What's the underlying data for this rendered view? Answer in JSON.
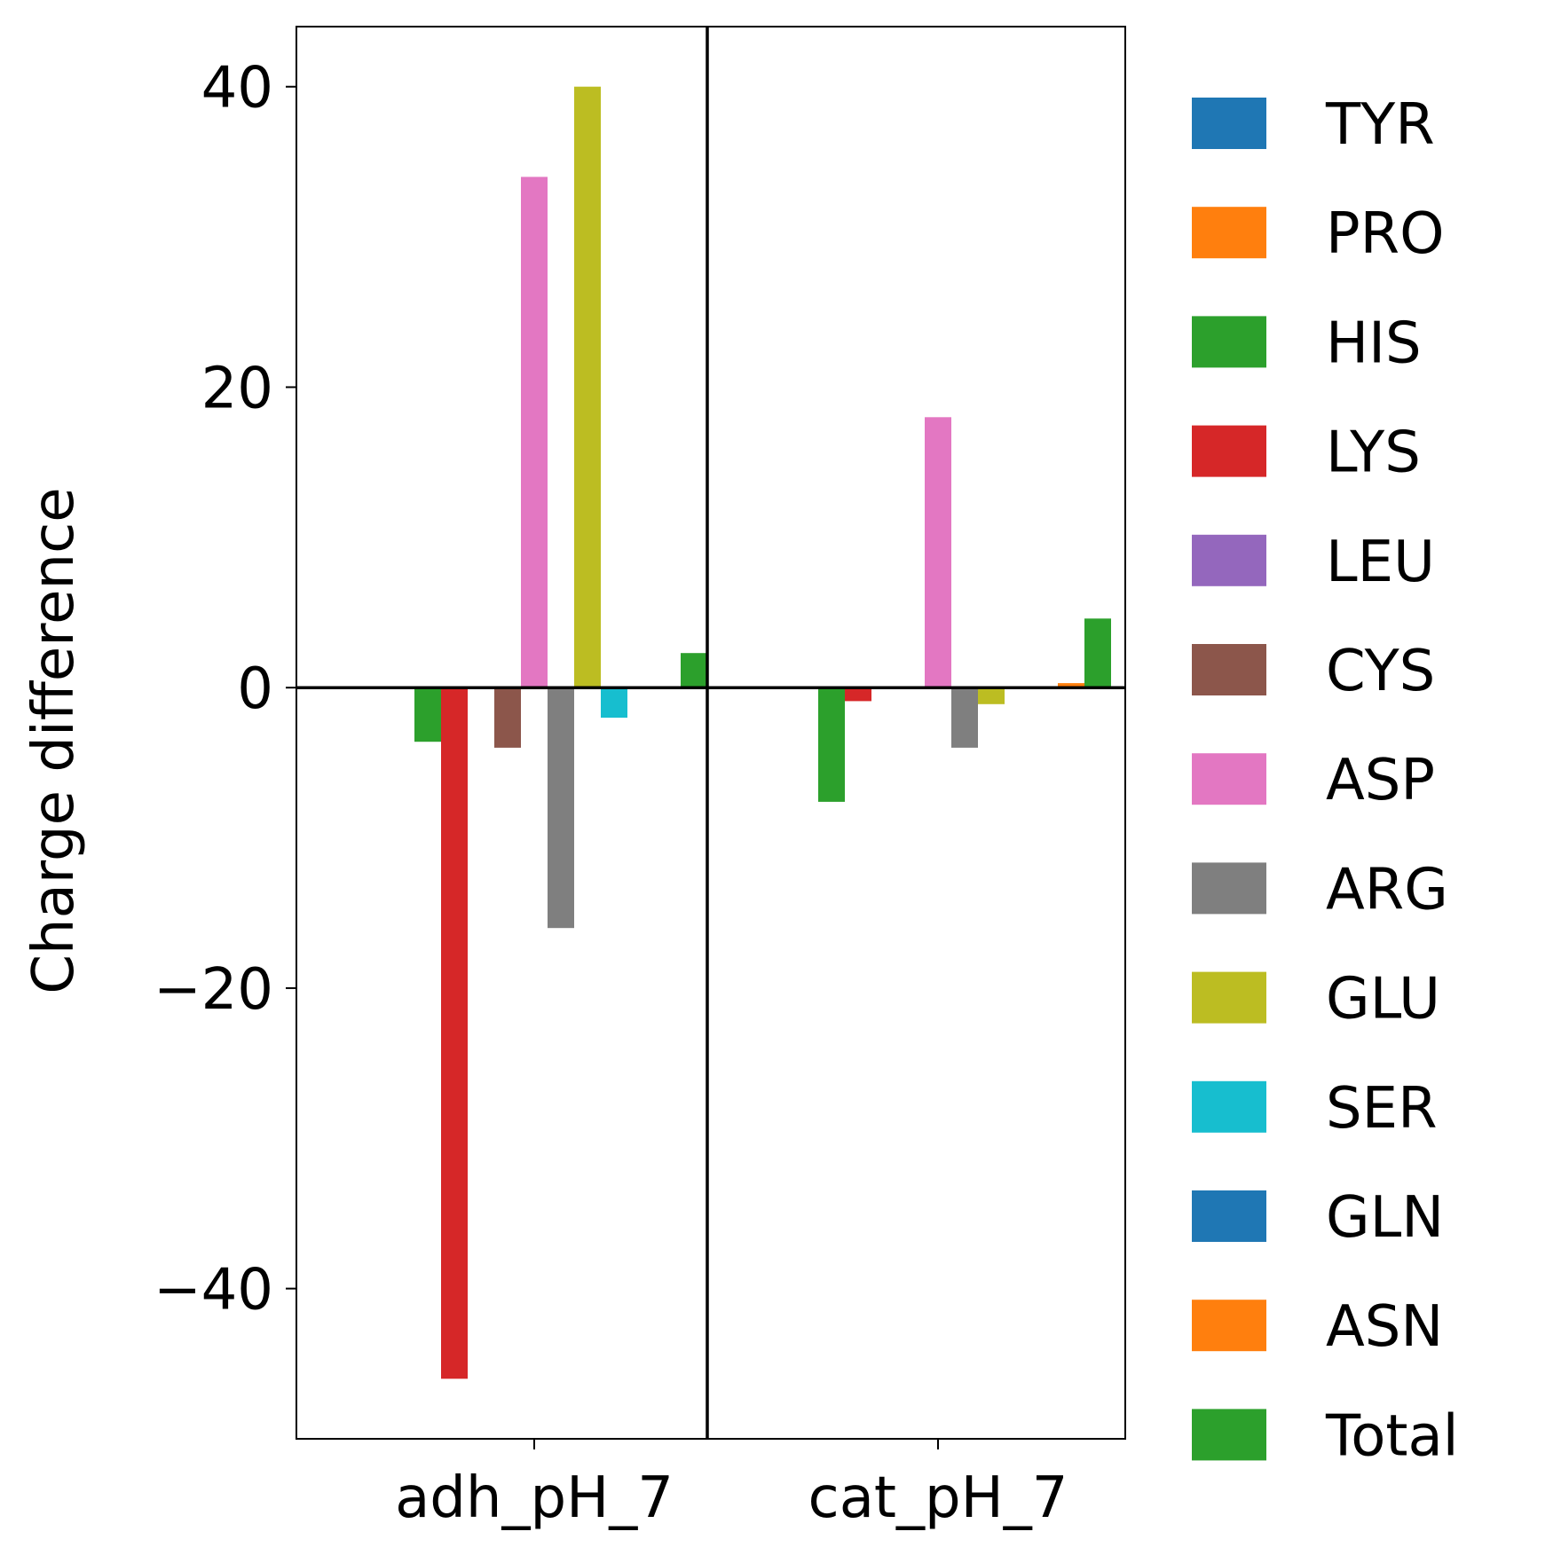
{
  "chart_data": {
    "type": "bar",
    "title": "",
    "xlabel": "",
    "ylabel": "Charge difference",
    "ylim": [
      -50,
      44
    ],
    "yticks": [
      40,
      20,
      0,
      -20,
      -40
    ],
    "ytick_labels": [
      "40",
      "20",
      "0",
      "−20",
      "−40"
    ],
    "grid": false,
    "legend_position": "right",
    "categories": [
      "adh_pH_7",
      "cat_pH_7"
    ],
    "series": [
      {
        "name": "TYR",
        "color": "#1f77b4",
        "values": [
          0,
          0
        ]
      },
      {
        "name": "PRO",
        "color": "#ff7f0e",
        "values": [
          0,
          0
        ]
      },
      {
        "name": "HIS",
        "color": "#2ca02c",
        "values": [
          -3.6,
          -7.6
        ]
      },
      {
        "name": "LYS",
        "color": "#d62728",
        "values": [
          -46,
          -0.9
        ]
      },
      {
        "name": "LEU",
        "color": "#9467bd",
        "values": [
          0,
          0
        ]
      },
      {
        "name": "CYS",
        "color": "#8c564b",
        "values": [
          -4,
          0
        ]
      },
      {
        "name": "ASP",
        "color": "#e377c2",
        "values": [
          34,
          18
        ]
      },
      {
        "name": "ARG",
        "color": "#7f7f7f",
        "values": [
          -16,
          -4
        ]
      },
      {
        "name": "GLU",
        "color": "#bcbd22",
        "values": [
          40,
          -1.1
        ]
      },
      {
        "name": "SER",
        "color": "#17becf",
        "values": [
          -2,
          0
        ]
      },
      {
        "name": "GLN",
        "color": "#1f77b4",
        "values": [
          0,
          0
        ]
      },
      {
        "name": "ASN",
        "color": "#ff7f0e",
        "values": [
          0,
          0.3
        ]
      },
      {
        "name": "Total",
        "color": "#2ca02c",
        "values": [
          2.3,
          4.6
        ]
      }
    ]
  }
}
